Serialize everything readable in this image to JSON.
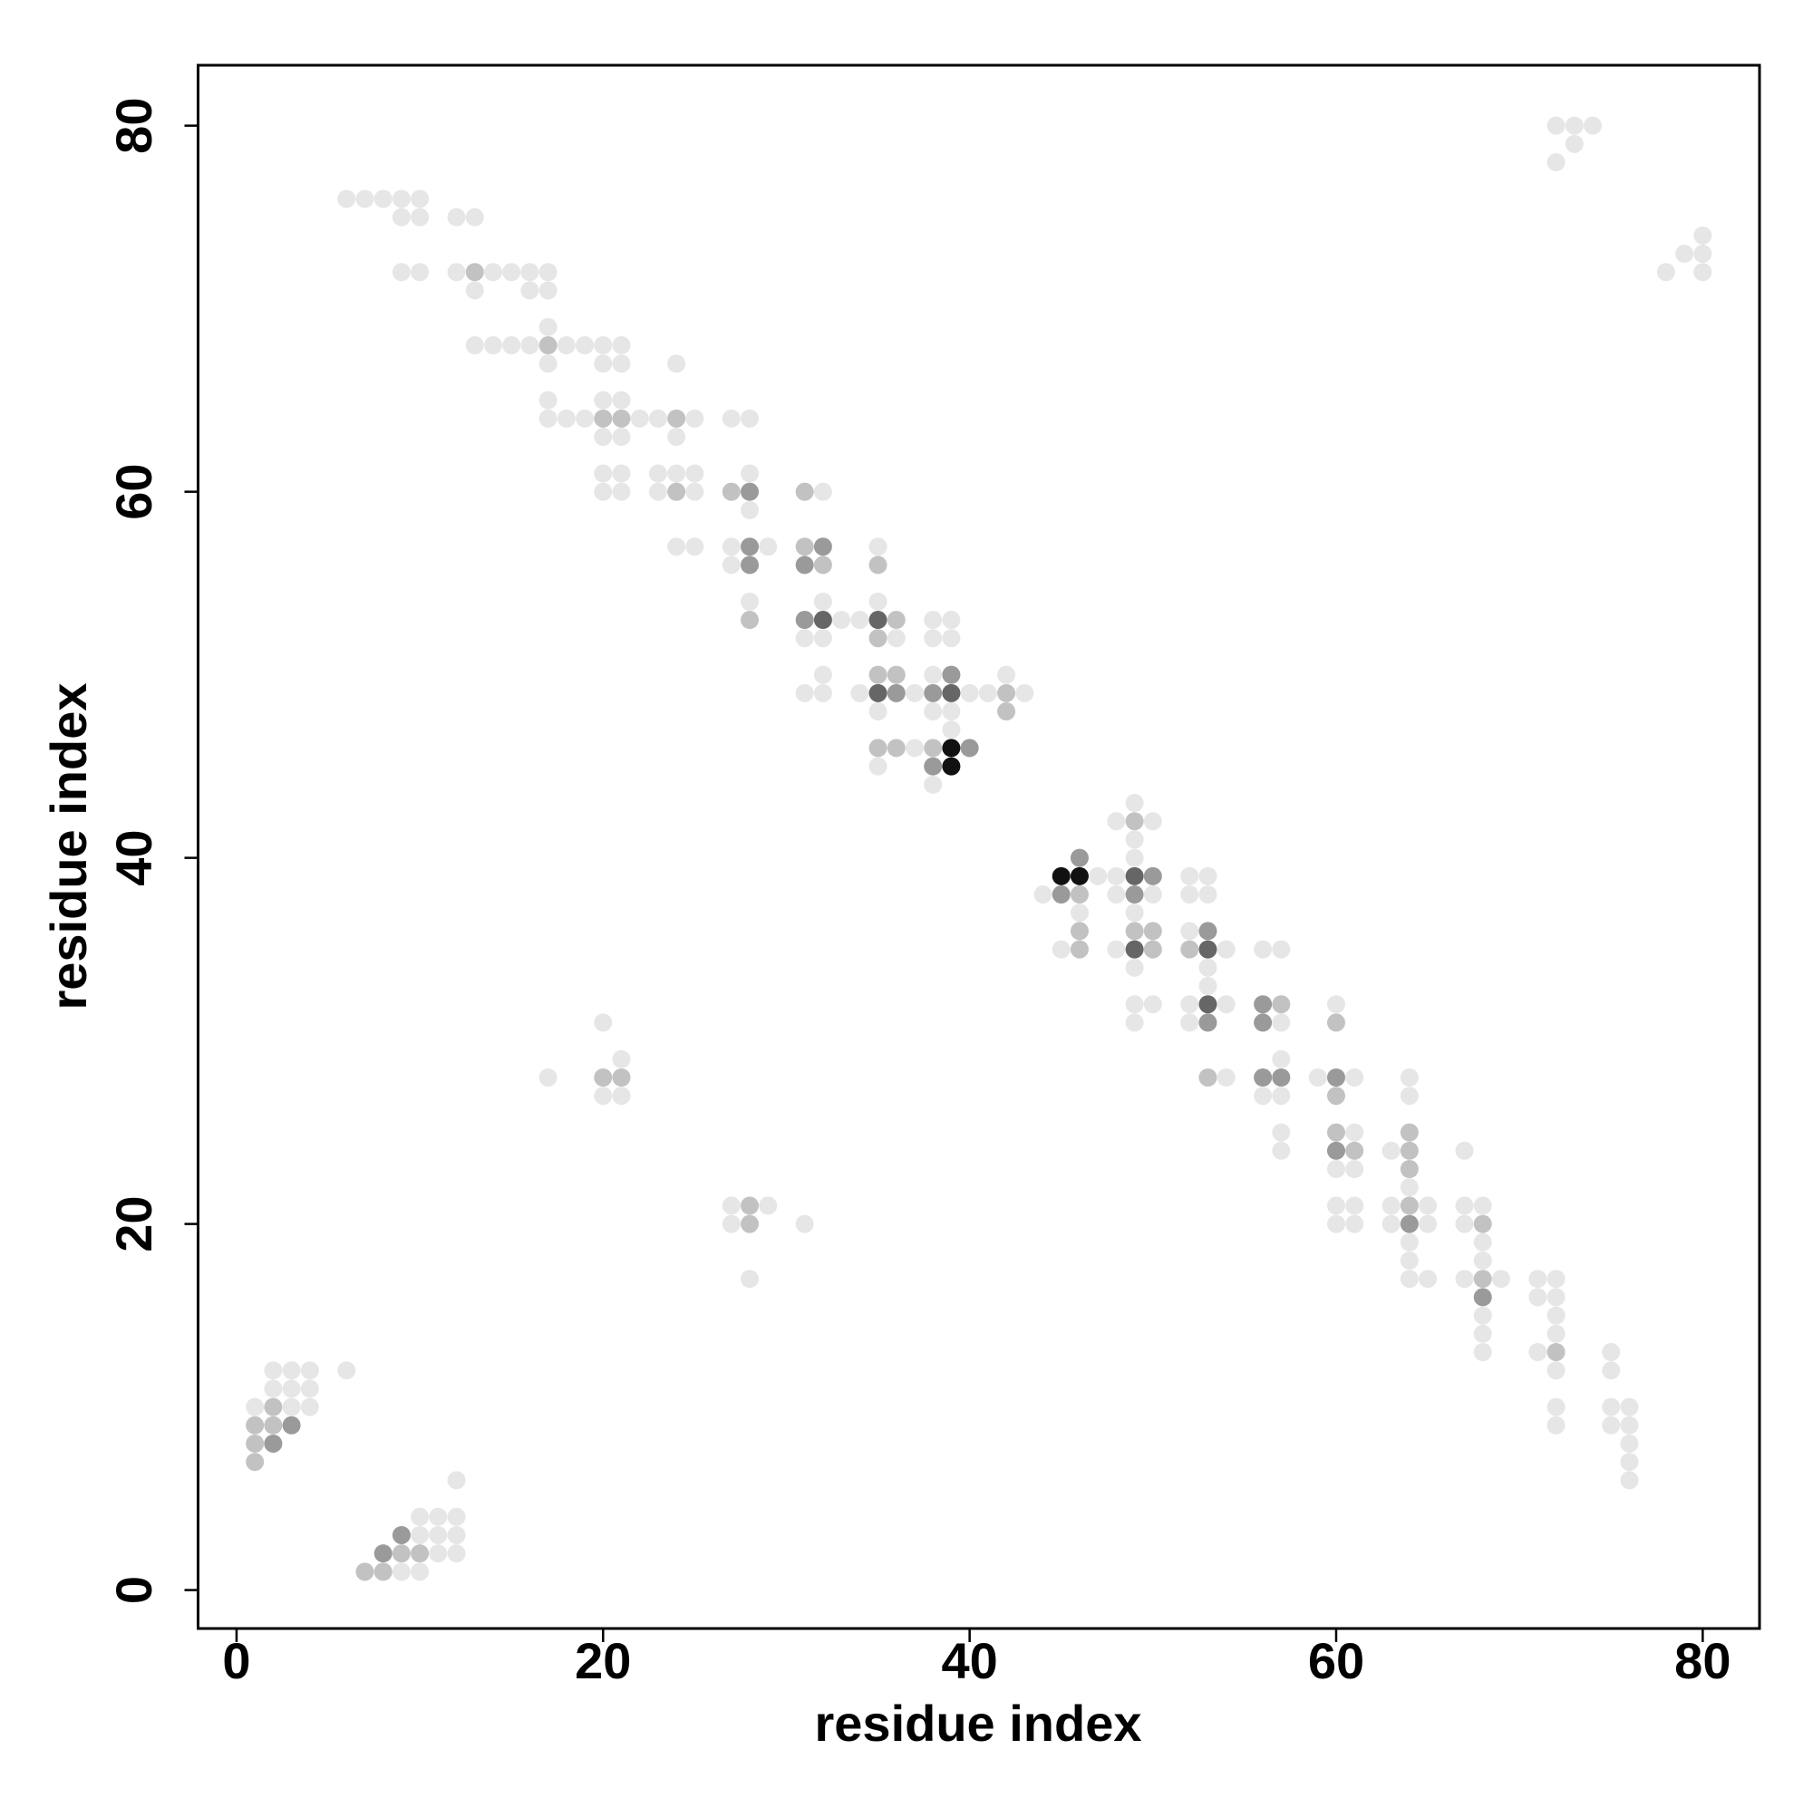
{
  "chart_data": {
    "type": "scatter",
    "x_label": "residue index",
    "y_label": "residue index",
    "xlim": [
      -2.1,
      83.1
    ],
    "ylim": [
      -2.1,
      83.3
    ],
    "xticks": [
      0,
      20,
      40,
      60,
      80
    ],
    "yticks": [
      0,
      20,
      40,
      60,
      80
    ],
    "series": [
      {
        "color": "#e6e6e6",
        "x": [
          6,
          7,
          8,
          9,
          10,
          9,
          10,
          12,
          13,
          9,
          10,
          12,
          14,
          15,
          16,
          17,
          13,
          16,
          17,
          17,
          13,
          14,
          15,
          16,
          18,
          19,
          20,
          21,
          17,
          20,
          21,
          24,
          17,
          20,
          21,
          17,
          18,
          19,
          22,
          23,
          25,
          27,
          28,
          20,
          21,
          24,
          20,
          21,
          23,
          24,
          25,
          28,
          20,
          21,
          23,
          25,
          32,
          28,
          24,
          25,
          27,
          29,
          35,
          27,
          28,
          32,
          35,
          33,
          34,
          38,
          39,
          31,
          32,
          36,
          38,
          39,
          32,
          38,
          42,
          31,
          32,
          34,
          37,
          40,
          41,
          43,
          35,
          38,
          39,
          39,
          37,
          35,
          38,
          49,
          48,
          50,
          49,
          49,
          47,
          48,
          52,
          53,
          44,
          48,
          50,
          52,
          53,
          46,
          49,
          52,
          45,
          48,
          54,
          56,
          57,
          49,
          53,
          53,
          49,
          50,
          52,
          54,
          60,
          20,
          49,
          52,
          57,
          21,
          57,
          17,
          54,
          59,
          61,
          64,
          20,
          21,
          56,
          57,
          64,
          57,
          61,
          57,
          63,
          67,
          60,
          61,
          64,
          27,
          29,
          60,
          61,
          63,
          65,
          67,
          68,
          27,
          31,
          60,
          61,
          63,
          65,
          67,
          64,
          68,
          64,
          68,
          28,
          64,
          65,
          67,
          69,
          71,
          72,
          71,
          72,
          68,
          72,
          68,
          72,
          68,
          71,
          75,
          2,
          3,
          4,
          6,
          72,
          75,
          2,
          3,
          4,
          1,
          3,
          4,
          72,
          75,
          76,
          72,
          75,
          76,
          76,
          76,
          12,
          76,
          10,
          11,
          12,
          10,
          11,
          12,
          11,
          12,
          9,
          10,
          72,
          73,
          74,
          73,
          72,
          80,
          79,
          80,
          78,
          80
        ],
        "y": [
          76,
          76,
          76,
          76,
          76,
          75,
          75,
          75,
          75,
          72,
          72,
          72,
          72,
          72,
          72,
          72,
          71,
          71,
          71,
          69,
          68,
          68,
          68,
          68,
          68,
          68,
          68,
          68,
          67,
          67,
          67,
          67,
          65,
          65,
          65,
          64,
          64,
          64,
          64,
          64,
          64,
          64,
          64,
          63,
          63,
          63,
          61,
          61,
          61,
          61,
          61,
          61,
          60,
          60,
          60,
          60,
          60,
          59,
          57,
          57,
          57,
          57,
          57,
          56,
          54,
          54,
          54,
          53,
          53,
          53,
          53,
          52,
          52,
          52,
          52,
          52,
          50,
          50,
          50,
          49,
          49,
          49,
          49,
          49,
          49,
          49,
          48,
          48,
          48,
          47,
          46,
          45,
          44,
          43,
          42,
          42,
          41,
          40,
          39,
          39,
          39,
          39,
          38,
          38,
          38,
          38,
          38,
          37,
          37,
          36,
          35,
          35,
          35,
          35,
          35,
          34,
          34,
          33,
          32,
          32,
          32,
          32,
          32,
          31,
          31,
          31,
          31,
          29,
          29,
          28,
          28,
          28,
          28,
          28,
          27,
          27,
          27,
          27,
          27,
          25,
          25,
          24,
          24,
          24,
          23,
          23,
          22,
          21,
          21,
          21,
          21,
          21,
          21,
          21,
          21,
          20,
          20,
          20,
          20,
          20,
          20,
          20,
          19,
          19,
          18,
          18,
          17,
          17,
          17,
          17,
          17,
          17,
          17,
          16,
          16,
          15,
          15,
          14,
          14,
          13,
          13,
          13,
          12,
          12,
          12,
          12,
          12,
          12,
          11,
          11,
          11,
          10,
          10,
          10,
          10,
          10,
          10,
          9,
          9,
          9,
          8,
          7,
          6,
          6,
          4,
          4,
          4,
          3,
          3,
          3,
          2,
          2,
          1,
          1,
          80,
          80,
          80,
          79,
          78,
          74,
          73,
          73,
          72,
          72
        ]
      },
      {
        "color": "#c2c2c2",
        "x": [
          13,
          17,
          20,
          21,
          24,
          24,
          27,
          31,
          31,
          32,
          35,
          28,
          36,
          35,
          35,
          36,
          42,
          42,
          35,
          36,
          38,
          49,
          46,
          46,
          49,
          50,
          46,
          50,
          52,
          57,
          60,
          53,
          60,
          60,
          64,
          61,
          64,
          64,
          64,
          68,
          68,
          72,
          20,
          21,
          28,
          28,
          2,
          1,
          2,
          1,
          1,
          9,
          10,
          7,
          8
        ],
        "y": [
          72,
          68,
          64,
          64,
          64,
          60,
          60,
          60,
          57,
          56,
          56,
          53,
          53,
          52,
          50,
          50,
          49,
          48,
          46,
          46,
          46,
          42,
          38,
          36,
          36,
          36,
          35,
          35,
          35,
          32,
          31,
          28,
          27,
          25,
          25,
          24,
          24,
          23,
          21,
          20,
          17,
          13,
          28,
          28,
          21,
          20,
          10,
          9,
          9,
          8,
          7,
          2,
          2,
          1,
          1
        ]
      },
      {
        "color": "#9a9a9a",
        "x": [
          28,
          28,
          32,
          28,
          31,
          31,
          39,
          36,
          38,
          40,
          38,
          46,
          50,
          45,
          49,
          53,
          56,
          53,
          56,
          56,
          57,
          60,
          60,
          64,
          68,
          3,
          2,
          9,
          8
        ],
        "y": [
          60,
          57,
          57,
          56,
          56,
          53,
          50,
          49,
          49,
          46,
          45,
          40,
          39,
          38,
          38,
          36,
          32,
          31,
          31,
          28,
          28,
          28,
          24,
          20,
          16,
          9,
          8,
          3,
          2
        ]
      },
      {
        "color": "#666666",
        "x": [
          32,
          35,
          35,
          39,
          49,
          49,
          53,
          53
        ],
        "y": [
          53,
          53,
          49,
          49,
          39,
          35,
          35,
          32
        ]
      },
      {
        "color": "#111111",
        "x": [
          39,
          39,
          45,
          46
        ],
        "y": [
          46,
          45,
          39,
          39
        ]
      }
    ]
  }
}
